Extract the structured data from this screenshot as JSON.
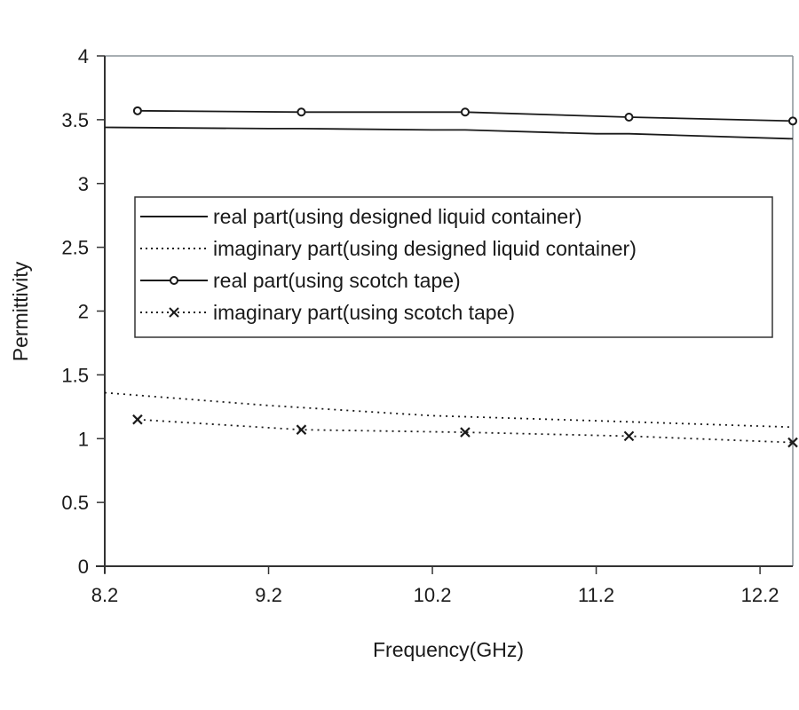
{
  "chart_data": {
    "type": "line",
    "title": "",
    "xlabel": "Frequency(GHz)",
    "ylabel": "Permittivity",
    "xlim": [
      8.2,
      12.4
    ],
    "ylim": [
      0,
      4
    ],
    "x_ticks": [
      8.2,
      9.2,
      10.2,
      11.2,
      12.2
    ],
    "x_tick_labels": [
      "8.2",
      "9.2",
      "10.2",
      "11.2",
      "12.2"
    ],
    "y_ticks": [
      0,
      0.5,
      1,
      1.5,
      2,
      2.5,
      3,
      3.5,
      4
    ],
    "y_tick_labels": [
      "0",
      "0.5",
      "1",
      "1.5",
      "2",
      "2.5",
      "3",
      "3.5",
      "4"
    ],
    "grid": false,
    "legend_position": "inside, upper-middle left",
    "series": [
      {
        "name": "real part(using designed liquid container)",
        "style": "solid",
        "marker": "none",
        "x": [
          8.2,
          9.2,
          9.4,
          10.2,
          10.4,
          11.2,
          11.4,
          12.4
        ],
        "values": [
          3.44,
          3.43,
          3.43,
          3.42,
          3.42,
          3.39,
          3.39,
          3.35
        ]
      },
      {
        "name": "imaginary part(using designed liquid container)",
        "style": "dotted",
        "marker": "none",
        "x": [
          8.2,
          9.2,
          10.2,
          11.2,
          12.4
        ],
        "values": [
          1.36,
          1.26,
          1.18,
          1.14,
          1.09
        ]
      },
      {
        "name": "real part(using scotch tape)",
        "style": "solid",
        "marker": "circle",
        "x": [
          8.4,
          9.4,
          10.4,
          11.4,
          12.4
        ],
        "values": [
          3.57,
          3.56,
          3.56,
          3.52,
          3.49
        ]
      },
      {
        "name": "imaginary part(using scotch tape)",
        "style": "dotted",
        "marker": "x",
        "x": [
          8.4,
          9.4,
          10.4,
          11.4,
          12.4
        ],
        "values": [
          1.15,
          1.07,
          1.05,
          1.02,
          0.97
        ]
      }
    ]
  },
  "legend": {
    "items": [
      {
        "label": "real part(using designed liquid container)"
      },
      {
        "label": "imaginary part(using designed liquid container)"
      },
      {
        "label": "real part(using scotch tape)"
      },
      {
        "label": "imaginary part(using scotch tape)"
      }
    ]
  },
  "colors": {
    "axis": "#333333",
    "frame": "#8a9499",
    "line": "#1a1a1a"
  }
}
